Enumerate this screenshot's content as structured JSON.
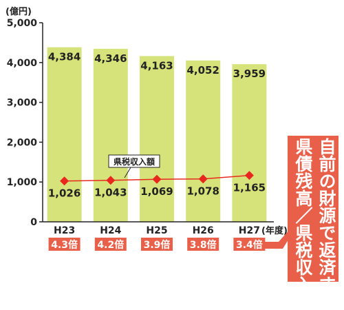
{
  "chart_data": {
    "type": "bar",
    "unit_label": "(億円)",
    "x_unit_label": "(年度)",
    "categories": [
      "H23",
      "H24",
      "H25",
      "H26",
      "H27"
    ],
    "ylim": [
      0,
      5000
    ],
    "yticks": [
      "0",
      "1,000",
      "2,000",
      "3,000",
      "4,000",
      "5,000"
    ],
    "bar_values": [
      4384,
      4346,
      4163,
      4052,
      3959
    ],
    "bar_labels": [
      "4,384",
      "4,346",
      "4,163",
      "4,052",
      "3,959"
    ],
    "line_values": [
      1026,
      1043,
      1069,
      1078,
      1165
    ],
    "line_labels": [
      "1,026",
      "1,043",
      "1,069",
      "1,078",
      "1,165"
    ],
    "line_callout": "県税収入額",
    "ratios": [
      "4.3倍",
      "4.2倍",
      "3.9倍",
      "3.8倍",
      "3.4倍"
    ],
    "side_label_lines": [
      "自前の財源で返済する",
      "県債残高／県税収入額"
    ],
    "colors": {
      "bar": "#d6e37a",
      "line": "#e8281e",
      "marker": "#e8281e",
      "ratio_bg": "#e8604a",
      "side_bg": "#e8604a",
      "axis": "#222222"
    }
  }
}
